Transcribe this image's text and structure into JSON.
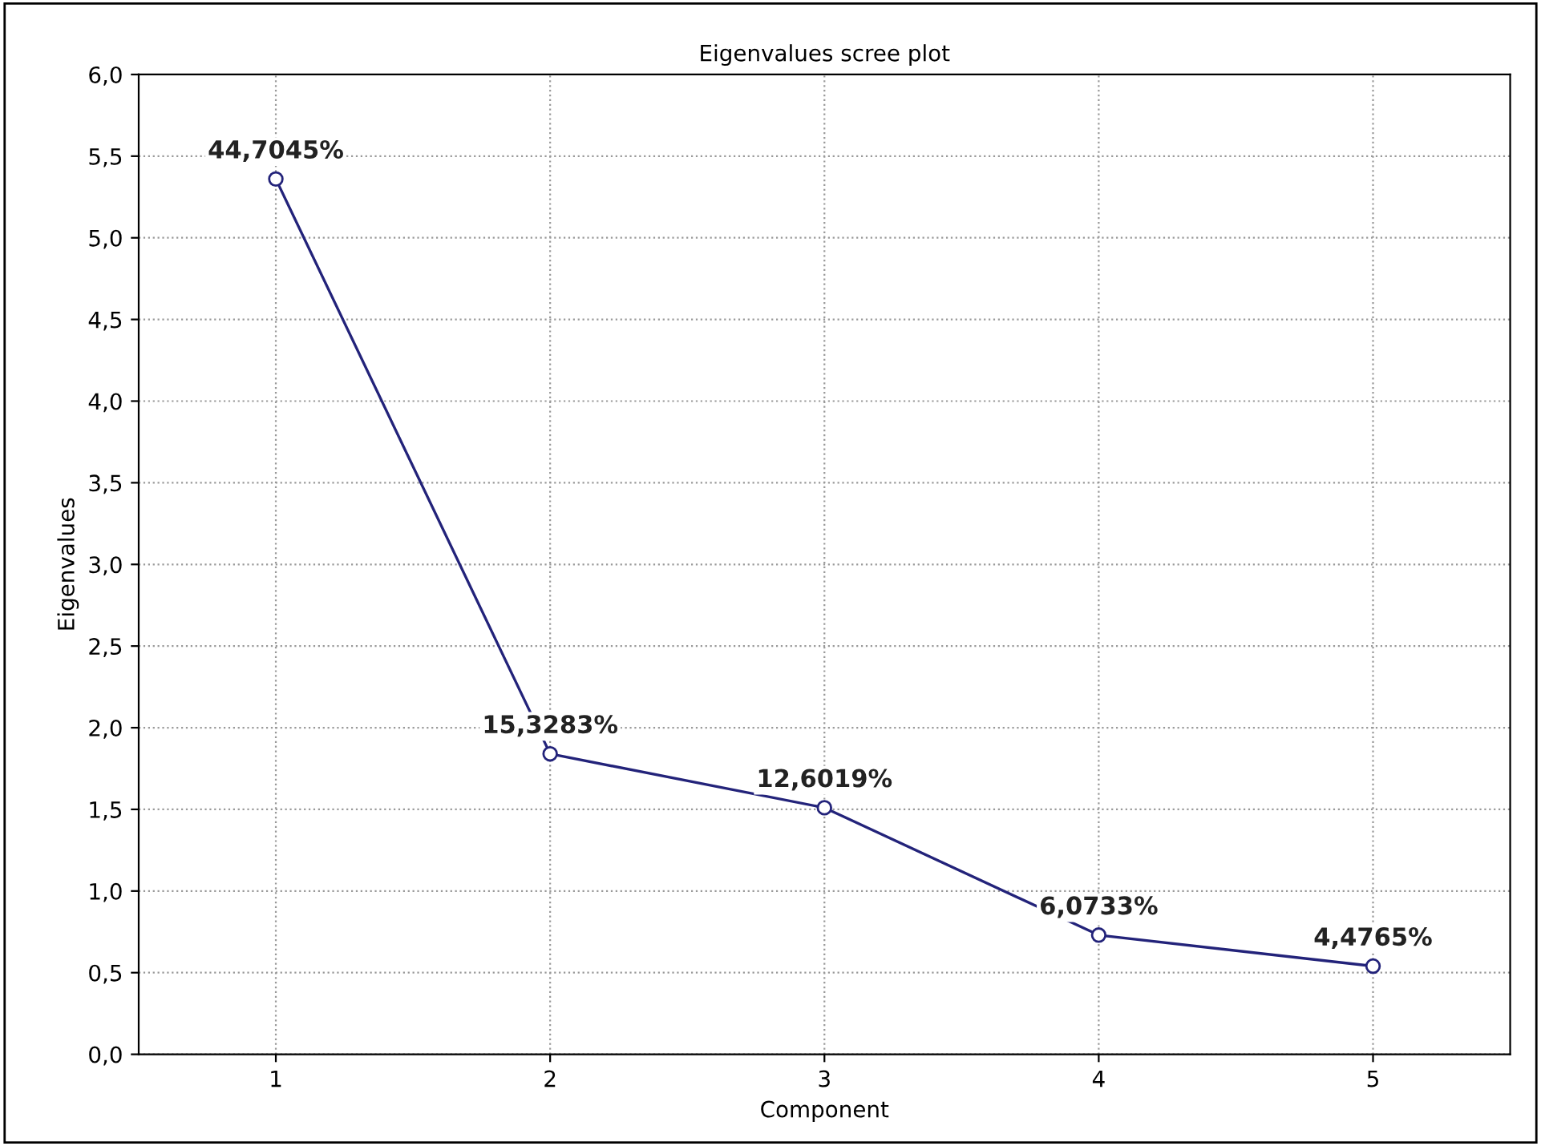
{
  "chart_data": {
    "type": "line",
    "title": "Eigenvalues scree plot",
    "xlabel": "Component",
    "ylabel": "Eigenvalues",
    "x": [
      1,
      2,
      3,
      4,
      5
    ],
    "series": [
      {
        "color": "#23237a",
        "values": [
          5.36,
          1.84,
          1.51,
          0.73,
          0.54
        ]
      }
    ],
    "xlim": [
      0.5,
      5.5
    ],
    "xticks": [
      1,
      2,
      3,
      4,
      5
    ],
    "ylim": [
      0,
      6
    ],
    "yticks": [
      {
        "value": 0,
        "label": "0,0"
      },
      {
        "value": 0.5,
        "label": "0,5"
      },
      {
        "value": 1,
        "label": "1,0"
      },
      {
        "value": 1.5,
        "label": "1,5"
      },
      {
        "value": 2,
        "label": "2,0"
      },
      {
        "value": 2.5,
        "label": "2,5"
      },
      {
        "value": 3,
        "label": "3,0"
      },
      {
        "value": 3.5,
        "label": "3,5"
      },
      {
        "value": 4,
        "label": "4,0"
      },
      {
        "value": 4.5,
        "label": "4,5"
      },
      {
        "value": 5,
        "label": "5,0"
      },
      {
        "value": 5.5,
        "label": "5,5"
      },
      {
        "value": 6,
        "label": "6,0"
      }
    ],
    "annotations": [
      {
        "text": "44,7045%",
        "x": 1,
        "y": 5.36
      },
      {
        "text": "15,3283%",
        "x": 2,
        "y": 1.84
      },
      {
        "text": "12,6019%",
        "x": 3,
        "y": 1.51
      },
      {
        "text": "6,0733%",
        "x": 4,
        "y": 0.73
      },
      {
        "text": "4,4765%",
        "x": 5,
        "y": 0.54
      }
    ],
    "grid": true,
    "marker": "circle",
    "line_style": "solid"
  }
}
